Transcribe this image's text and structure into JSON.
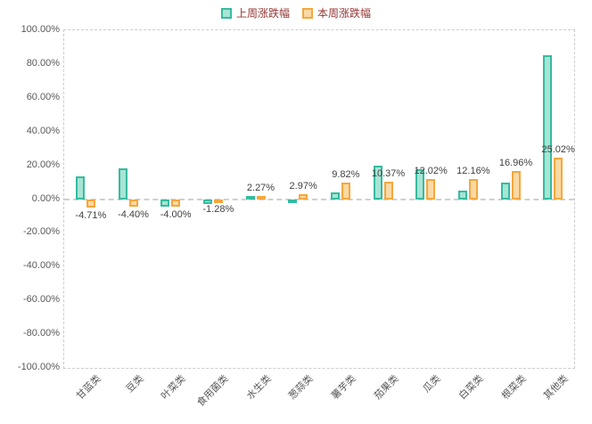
{
  "legend": {
    "items": [
      {
        "label": "上周涨跌幅"
      },
      {
        "label": "本周涨跌幅"
      }
    ]
  },
  "colors": {
    "legend_text": "#953735",
    "axis_text": "#595959",
    "data_label_text": "#404040",
    "plot_border": "#cccccc",
    "zero_line": "#d0d0d0",
    "background": "#ffffff"
  },
  "chart_data": {
    "type": "bar",
    "title": "",
    "categories": [
      "甘蓝类",
      "豆类",
      "叶菜类",
      "食用菌类",
      "水生类",
      "葱蒜类",
      "薯芋类",
      "茄果类",
      "瓜类",
      "白菜类",
      "根菜类",
      "其他类"
    ],
    "series": [
      {
        "name": "上周涨跌幅",
        "values": [
          14.0,
          18.5,
          -4.0,
          -2.5,
          2.0,
          -1.5,
          4.0,
          20.0,
          18.0,
          5.5,
          10.0,
          85.5
        ],
        "border": "#35BBA0",
        "fill": "#A8E4D4",
        "show_labels": false
      },
      {
        "name": "本周涨跌幅",
        "values": [
          -4.71,
          -4.4,
          -4.0,
          -1.28,
          2.27,
          2.97,
          9.82,
          10.37,
          12.02,
          12.16,
          16.96,
          25.02
        ],
        "labels": [
          "-4.71%",
          "-4.40%",
          "-4.00%",
          "-1.28%",
          "2.27%",
          "2.97%",
          "9.82%",
          "10.37%",
          "12.02%",
          "12.16%",
          "16.96%",
          "25.02%"
        ],
        "border": "#F5A73E",
        "fill": "#FBD9A4",
        "show_labels": true
      }
    ],
    "xlabel": "",
    "ylabel": "",
    "ylim": [
      -100,
      100
    ],
    "ytick_step": 20,
    "ytick_labels": [
      "100.00%",
      "80.00%",
      "60.00%",
      "40.00%",
      "20.00%",
      "0.00%",
      "-20.00%",
      "-40.00%",
      "-60.00%",
      "-80.00%",
      "-100.00%"
    ],
    "grid": "zero-line-only",
    "legend_position": "top-center"
  }
}
